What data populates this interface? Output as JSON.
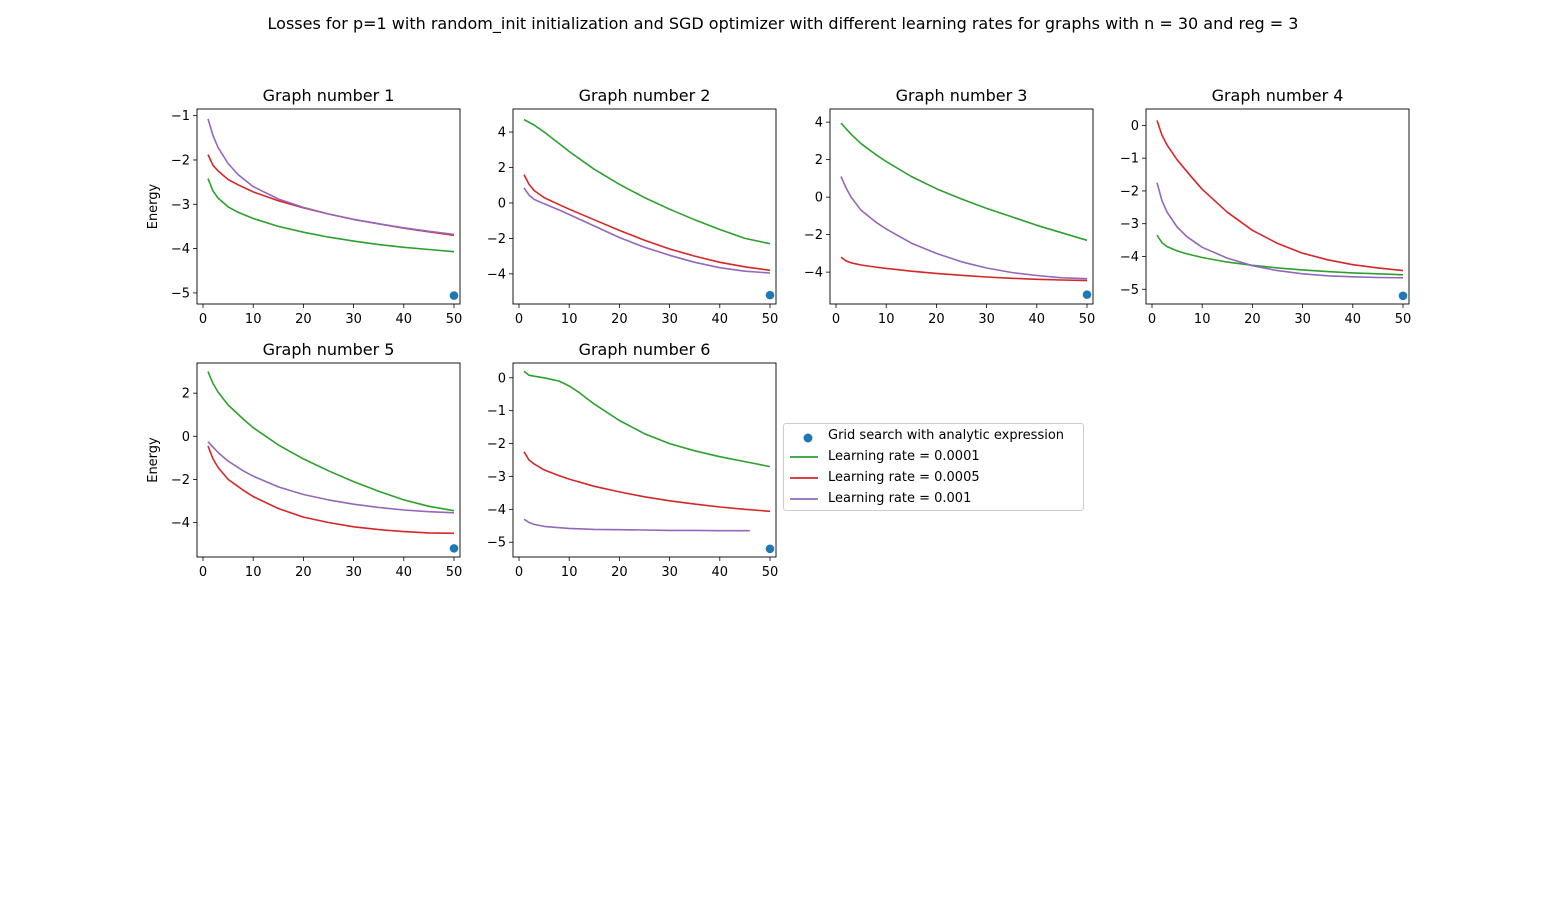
{
  "figure": {
    "title": "Losses for p=1 with random_init initialization and SGD optimizer with different learning rates for graphs with n = 30 and reg = 3"
  },
  "legend": {
    "items": [
      {
        "label": "Grid search with analytic expression",
        "kind": "marker",
        "color": "#1f77b4"
      },
      {
        "label": "Learning rate = 0.0001",
        "kind": "line",
        "color": "#2ca02c"
      },
      {
        "label": "Learning rate = 0.0005",
        "kind": "line",
        "color": "#d62728"
      },
      {
        "label": "Learning rate = 0.001",
        "kind": "line",
        "color": "#9467bd"
      }
    ]
  },
  "chart_data": [
    {
      "type": "line",
      "title": "Graph number 1",
      "ylabel": "Energy",
      "xlabel": "",
      "xlim": [
        0,
        50
      ],
      "ylim": [
        -5.25,
        -0.85
      ],
      "xticks": [
        0,
        10,
        20,
        30,
        40,
        50
      ],
      "yticks": [
        -1,
        -2,
        -3,
        -4,
        -5
      ],
      "marker": {
        "name": "Grid search with analytic expression",
        "x": 50,
        "y": -5.06
      },
      "series": [
        {
          "name": "Learning rate = 0.0001",
          "color": "#2ca02c",
          "x": [
            1,
            2,
            3,
            5,
            7,
            10,
            15,
            20,
            25,
            30,
            35,
            40,
            45,
            50
          ],
          "y": [
            -2.42,
            -2.7,
            -2.86,
            -3.06,
            -3.18,
            -3.32,
            -3.5,
            -3.63,
            -3.74,
            -3.83,
            -3.91,
            -3.97,
            -4.02,
            -4.07
          ]
        },
        {
          "name": "Learning rate = 0.0005",
          "color": "#d62728",
          "x": [
            1,
            2,
            3,
            5,
            7,
            10,
            15,
            20,
            25,
            30,
            35,
            40,
            45,
            50
          ],
          "y": [
            -1.88,
            -2.12,
            -2.25,
            -2.44,
            -2.56,
            -2.72,
            -2.92,
            -3.08,
            -3.22,
            -3.34,
            -3.44,
            -3.54,
            -3.62,
            -3.7
          ]
        },
        {
          "name": "Learning rate = 0.001",
          "color": "#9467bd",
          "x": [
            1,
            2,
            3,
            5,
            7,
            10,
            15,
            20,
            25,
            30,
            35,
            40,
            45,
            50
          ],
          "y": [
            -1.07,
            -1.45,
            -1.72,
            -2.08,
            -2.33,
            -2.6,
            -2.88,
            -3.07,
            -3.22,
            -3.34,
            -3.44,
            -3.53,
            -3.61,
            -3.68
          ]
        }
      ]
    },
    {
      "type": "line",
      "title": "Graph number 2",
      "ylabel": "",
      "xlabel": "",
      "xlim": [
        0,
        50
      ],
      "ylim": [
        -5.7,
        5.3
      ],
      "xticks": [
        0,
        10,
        20,
        30,
        40,
        50
      ],
      "yticks": [
        4,
        2,
        0,
        -2,
        -4
      ],
      "marker": {
        "name": "Grid search with analytic expression",
        "x": 50,
        "y": -5.2
      },
      "series": [
        {
          "name": "Learning rate = 0.0001",
          "color": "#2ca02c",
          "x": [
            1,
            3,
            5,
            8,
            10,
            15,
            20,
            25,
            30,
            35,
            40,
            45,
            50
          ],
          "y": [
            4.7,
            4.4,
            4.0,
            3.35,
            2.9,
            1.9,
            1.05,
            0.3,
            -0.35,
            -0.95,
            -1.5,
            -2.0,
            -2.3
          ]
        },
        {
          "name": "Learning rate = 0.0005",
          "color": "#d62728",
          "x": [
            1,
            2,
            3,
            5,
            8,
            10,
            15,
            20,
            25,
            30,
            35,
            40,
            45,
            50
          ],
          "y": [
            1.6,
            1.05,
            0.7,
            0.3,
            -0.1,
            -0.35,
            -0.95,
            -1.55,
            -2.1,
            -2.6,
            -3.0,
            -3.35,
            -3.6,
            -3.8
          ]
        },
        {
          "name": "Learning rate = 0.001",
          "color": "#9467bd",
          "x": [
            1,
            2,
            3,
            5,
            8,
            10,
            15,
            20,
            25,
            30,
            35,
            40,
            45,
            50
          ],
          "y": [
            0.85,
            0.45,
            0.2,
            -0.05,
            -0.4,
            -0.65,
            -1.3,
            -1.95,
            -2.5,
            -2.95,
            -3.35,
            -3.65,
            -3.85,
            -3.95
          ]
        }
      ]
    },
    {
      "type": "line",
      "title": "Graph number 3",
      "ylabel": "",
      "xlabel": "",
      "xlim": [
        0,
        50
      ],
      "ylim": [
        -5.7,
        4.7
      ],
      "xticks": [
        0,
        10,
        20,
        30,
        40,
        50
      ],
      "yticks": [
        4,
        2,
        0,
        -2,
        -4
      ],
      "marker": {
        "name": "Grid search with analytic expression",
        "x": 50,
        "y": -5.2
      },
      "series": [
        {
          "name": "Learning rate = 0.0001",
          "color": "#2ca02c",
          "x": [
            1,
            3,
            5,
            8,
            10,
            15,
            20,
            25,
            30,
            35,
            40,
            45,
            50
          ],
          "y": [
            3.95,
            3.35,
            2.85,
            2.25,
            1.9,
            1.1,
            0.45,
            -0.1,
            -0.6,
            -1.05,
            -1.5,
            -1.9,
            -2.3
          ]
        },
        {
          "name": "Learning rate = 0.0005",
          "color": "#d62728",
          "x": [
            1,
            2,
            3,
            5,
            7,
            10,
            15,
            20,
            25,
            30,
            35,
            40,
            45,
            50
          ],
          "y": [
            -3.2,
            -3.4,
            -3.5,
            -3.62,
            -3.7,
            -3.8,
            -3.95,
            -4.07,
            -4.17,
            -4.26,
            -4.33,
            -4.38,
            -4.42,
            -4.45
          ]
        },
        {
          "name": "Learning rate = 0.001",
          "color": "#9467bd",
          "x": [
            1,
            2,
            3,
            5,
            8,
            10,
            15,
            20,
            25,
            30,
            35,
            40,
            45,
            50
          ],
          "y": [
            1.1,
            0.5,
            0.0,
            -0.7,
            -1.35,
            -1.7,
            -2.45,
            -3.0,
            -3.45,
            -3.78,
            -4.02,
            -4.18,
            -4.3,
            -4.35
          ]
        }
      ]
    },
    {
      "type": "line",
      "title": "Graph number 4",
      "ylabel": "",
      "xlabel": "",
      "xlim": [
        0,
        50
      ],
      "ylim": [
        -5.45,
        0.5
      ],
      "xticks": [
        0,
        10,
        20,
        30,
        40,
        50
      ],
      "yticks": [
        0,
        -1,
        -2,
        -3,
        -4,
        -5
      ],
      "marker": {
        "name": "Grid search with analytic expression",
        "x": 50,
        "y": -5.2
      },
      "series": [
        {
          "name": "Learning rate = 0.0001",
          "color": "#2ca02c",
          "x": [
            1,
            2,
            3,
            5,
            7,
            10,
            15,
            20,
            25,
            30,
            35,
            40,
            45,
            50
          ],
          "y": [
            -3.35,
            -3.58,
            -3.7,
            -3.83,
            -3.92,
            -4.03,
            -4.17,
            -4.27,
            -4.35,
            -4.41,
            -4.46,
            -4.5,
            -4.53,
            -4.56
          ]
        },
        {
          "name": "Learning rate = 0.0005",
          "color": "#d62728",
          "x": [
            1,
            2,
            3,
            5,
            8,
            10,
            15,
            20,
            25,
            30,
            35,
            40,
            45,
            50
          ],
          "y": [
            0.15,
            -0.3,
            -0.6,
            -1.05,
            -1.6,
            -1.95,
            -2.65,
            -3.2,
            -3.6,
            -3.9,
            -4.1,
            -4.25,
            -4.35,
            -4.43
          ]
        },
        {
          "name": "Learning rate = 0.001",
          "color": "#9467bd",
          "x": [
            1,
            2,
            3,
            5,
            7,
            10,
            15,
            20,
            25,
            30,
            35,
            40,
            45,
            50
          ],
          "y": [
            -1.75,
            -2.3,
            -2.65,
            -3.1,
            -3.4,
            -3.72,
            -4.05,
            -4.28,
            -4.43,
            -4.53,
            -4.59,
            -4.62,
            -4.64,
            -4.65
          ]
        }
      ]
    },
    {
      "type": "line",
      "title": "Graph number 5",
      "ylabel": "Energy",
      "xlabel": "",
      "xlim": [
        0,
        50
      ],
      "ylim": [
        -5.6,
        3.4
      ],
      "xticks": [
        0,
        10,
        20,
        30,
        40,
        50
      ],
      "yticks": [
        2,
        0,
        -2,
        -4
      ],
      "marker": {
        "name": "Grid search with analytic expression",
        "x": 50,
        "y": -5.2
      },
      "series": [
        {
          "name": "Learning rate = 0.0001",
          "color": "#2ca02c",
          "x": [
            1,
            2,
            3,
            5,
            8,
            10,
            15,
            20,
            25,
            30,
            35,
            40,
            45,
            50
          ],
          "y": [
            3.0,
            2.45,
            2.05,
            1.45,
            0.8,
            0.4,
            -0.4,
            -1.05,
            -1.6,
            -2.1,
            -2.55,
            -2.95,
            -3.25,
            -3.45
          ]
        },
        {
          "name": "Learning rate = 0.0005",
          "color": "#d62728",
          "x": [
            1,
            2,
            3,
            5,
            8,
            10,
            15,
            20,
            25,
            30,
            35,
            40,
            45,
            50
          ],
          "y": [
            -0.45,
            -1.05,
            -1.45,
            -2.0,
            -2.5,
            -2.8,
            -3.35,
            -3.75,
            -4.0,
            -4.2,
            -4.33,
            -4.42,
            -4.48,
            -4.5
          ]
        },
        {
          "name": "Learning rate = 0.001",
          "color": "#9467bd",
          "x": [
            1,
            2,
            3,
            5,
            8,
            10,
            15,
            20,
            25,
            30,
            35,
            40,
            45,
            50
          ],
          "y": [
            -0.25,
            -0.5,
            -0.75,
            -1.15,
            -1.6,
            -1.85,
            -2.35,
            -2.7,
            -2.95,
            -3.15,
            -3.3,
            -3.42,
            -3.5,
            -3.55
          ]
        }
      ]
    },
    {
      "type": "line",
      "title": "Graph number 6",
      "ylabel": "",
      "xlabel": "",
      "xlim": [
        0,
        50
      ],
      "ylim": [
        -5.45,
        0.45
      ],
      "xticks": [
        0,
        10,
        20,
        30,
        40,
        50
      ],
      "yticks": [
        0,
        -1,
        -2,
        -3,
        -4,
        -5
      ],
      "marker": {
        "name": "Grid search with analytic expression",
        "x": 50,
        "y": -5.2
      },
      "series": [
        {
          "name": "Learning rate = 0.0001",
          "color": "#2ca02c",
          "x": [
            1,
            2,
            3,
            5,
            8,
            10,
            12,
            15,
            20,
            25,
            30,
            35,
            40,
            45,
            50
          ],
          "y": [
            0.2,
            0.08,
            0.05,
            0.0,
            -0.1,
            -0.25,
            -0.45,
            -0.8,
            -1.3,
            -1.7,
            -2.0,
            -2.22,
            -2.4,
            -2.55,
            -2.7
          ]
        },
        {
          "name": "Learning rate = 0.0005",
          "color": "#d62728",
          "x": [
            1,
            2,
            3,
            5,
            8,
            10,
            15,
            20,
            25,
            30,
            35,
            40,
            45,
            50
          ],
          "y": [
            -2.25,
            -2.5,
            -2.62,
            -2.8,
            -2.98,
            -3.08,
            -3.3,
            -3.47,
            -3.62,
            -3.74,
            -3.84,
            -3.93,
            -4.0,
            -4.06
          ]
        },
        {
          "name": "Learning rate = 0.001",
          "color": "#9467bd",
          "x": [
            1,
            2,
            3,
            5,
            8,
            10,
            15,
            20,
            25,
            30,
            35,
            40,
            46
          ],
          "y": [
            -4.3,
            -4.4,
            -4.46,
            -4.52,
            -4.56,
            -4.58,
            -4.61,
            -4.62,
            -4.63,
            -4.64,
            -4.64,
            -4.65,
            -4.65
          ]
        }
      ]
    }
  ]
}
